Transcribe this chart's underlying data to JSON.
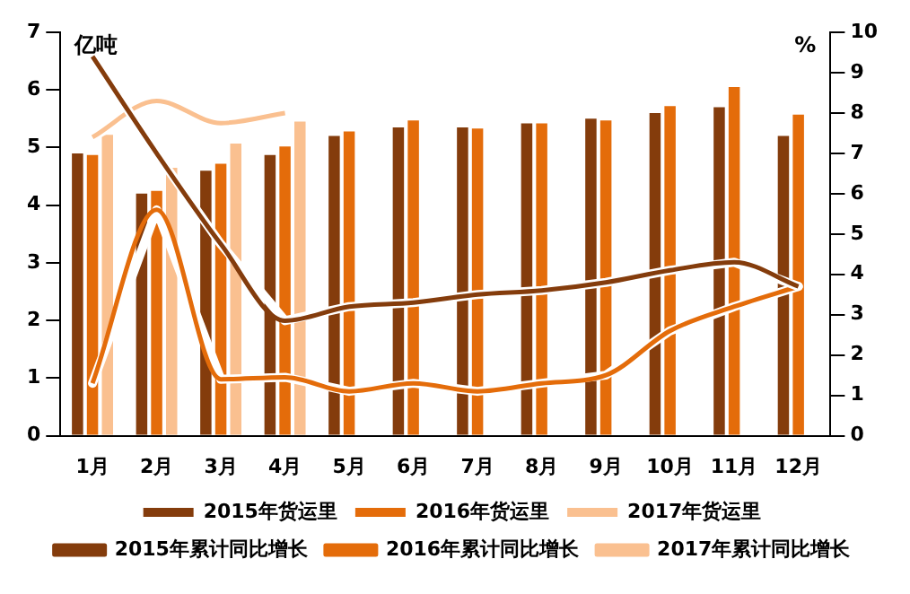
{
  "chart_data": {
    "type": "bar",
    "ylabel": "亿吨",
    "y2label": "%",
    "categories": [
      "1月",
      "2月",
      "3月",
      "4月",
      "5月",
      "6月",
      "7月",
      "8月",
      "9月",
      "10月",
      "11月",
      "12月"
    ],
    "series": [
      {
        "name": "2015年货运里",
        "color": "#843c0c",
        "values": [
          4.9,
          4.2,
          4.6,
          4.87,
          5.2,
          5.35,
          5.35,
          5.42,
          5.5,
          5.6,
          5.7,
          5.2
        ]
      },
      {
        "name": "2016年货运里",
        "color": "#e46c0a",
        "values": [
          4.87,
          4.25,
          4.72,
          5.02,
          5.28,
          5.47,
          5.33,
          5.42,
          5.47,
          5.72,
          6.05,
          5.57
        ]
      },
      {
        "name": "2017年货运里",
        "color": "#fac090",
        "values": [
          5.22,
          4.65,
          5.07,
          5.45,
          null,
          null,
          null,
          null,
          null,
          null,
          null,
          null
        ]
      },
      {
        "name": "2015年累计同比增长",
        "type": "line",
        "axis": "y2",
        "color": "#843c0c",
        "values": [
          9.4,
          7.0,
          4.75,
          2.85,
          3.2,
          3.3,
          3.5,
          3.6,
          3.8,
          4.1,
          4.3,
          3.7
        ]
      },
      {
        "name": "2016年累计同比增长",
        "type": "line",
        "axis": "y2",
        "color": "#e46c0a",
        "values": [
          1.3,
          5.6,
          1.4,
          1.45,
          1.1,
          1.3,
          1.1,
          1.3,
          1.5,
          2.6,
          3.2,
          3.7
        ]
      },
      {
        "name": "2017年累计同比增长",
        "type": "line",
        "axis": "y2",
        "color": "#fac090",
        "values": [
          7.4,
          8.3,
          7.75,
          8.0,
          null,
          null,
          null,
          null,
          null,
          null,
          null,
          null
        ]
      }
    ],
    "ylim": [
      0,
      7
    ],
    "yticks": [
      0,
      1,
      2,
      3,
      4,
      5,
      6,
      7
    ],
    "y2lim": [
      0,
      10
    ],
    "y2ticks": [
      0,
      1,
      2,
      3,
      4,
      5,
      6,
      7,
      8,
      9,
      10
    ],
    "grid": false,
    "legend": "bottom",
    "marker": "none",
    "line_style": "solid"
  }
}
